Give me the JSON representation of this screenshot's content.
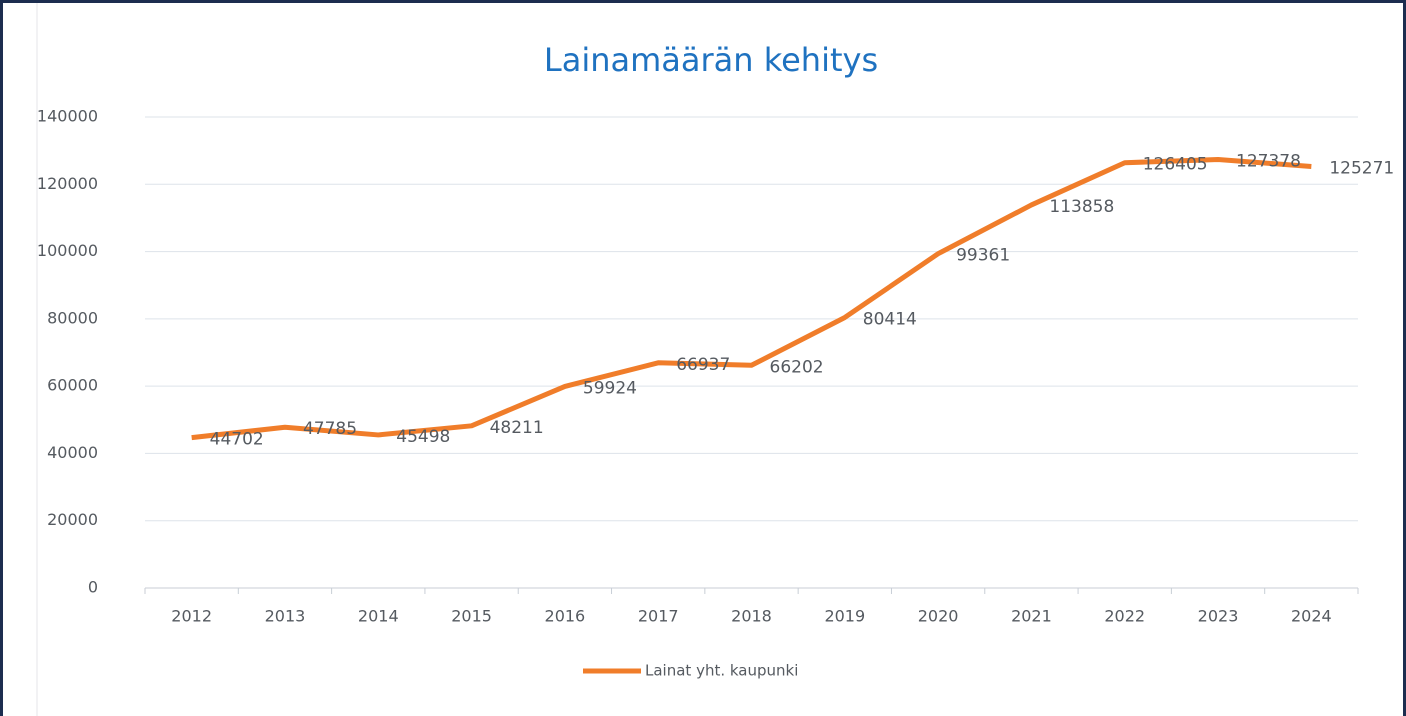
{
  "chart_data": {
    "type": "line",
    "title": "Lainamäärän kehitys",
    "categories": [
      "2012",
      "2013",
      "2014",
      "2015",
      "2016",
      "2017",
      "2018",
      "2019",
      "2020",
      "2021",
      "2022",
      "2023",
      "2024"
    ],
    "series": [
      {
        "name": "Lainat yht. kaupunki",
        "color": "#f07d2a",
        "values": [
          44702,
          47785,
          45498,
          48211,
          59924,
          66937,
          66202,
          80414,
          99361,
          113858,
          126405,
          127378,
          125271
        ]
      }
    ],
    "ylim": [
      0,
      140000
    ],
    "yticks": [
      0,
      20000,
      40000,
      60000,
      80000,
      100000,
      120000,
      140000
    ],
    "grid": true,
    "legend": "bottom"
  }
}
